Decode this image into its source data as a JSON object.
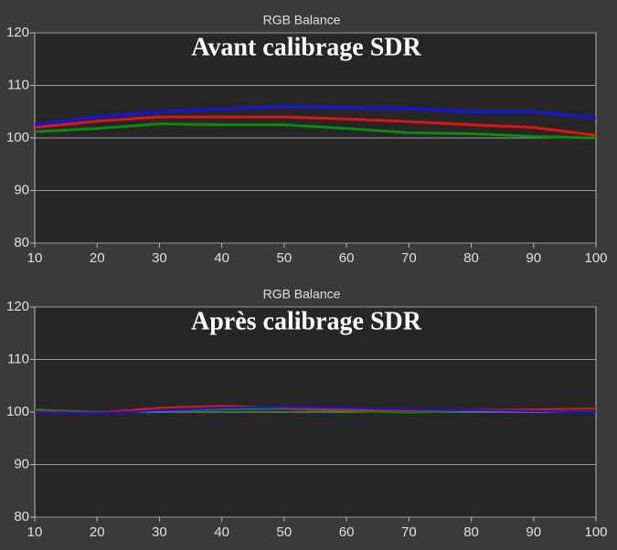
{
  "chart_data": [
    {
      "type": "line",
      "title": "RGB Balance",
      "annotation": "Avant calibrage SDR",
      "x": [
        10,
        20,
        30,
        40,
        50,
        60,
        70,
        80,
        90,
        100
      ],
      "series": [
        {
          "color": "#0a8a0a",
          "values": [
            101.2,
            101.8,
            102.7,
            102.5,
            102.5,
            101.8,
            101,
            100.8,
            100.3,
            100
          ]
        },
        {
          "color": "#e01414",
          "values": [
            102,
            103.2,
            104,
            104,
            104,
            103.6,
            103.1,
            102.5,
            102,
            100.5
          ]
        },
        {
          "color": "#1414e6",
          "values": [
            102.5,
            104,
            105,
            105.5,
            106,
            105.8,
            105.6,
            105,
            105,
            103.8
          ]
        }
      ],
      "xlim": [
        10,
        100
      ],
      "ylim": [
        80,
        120
      ],
      "xticks": [
        10,
        20,
        30,
        40,
        50,
        60,
        70,
        80,
        90,
        100
      ],
      "yticks": [
        80,
        90,
        100,
        110,
        120
      ],
      "grid": true
    },
    {
      "type": "line",
      "title": "RGB Balance",
      "annotation": "Après calibrage SDR",
      "x": [
        10,
        20,
        30,
        40,
        50,
        60,
        70,
        80,
        90,
        100
      ],
      "series": [
        {
          "color": "#0a8a0a",
          "values": [
            100.5,
            100,
            100.3,
            100.5,
            100.6,
            100.2,
            99.9,
            100.3,
            100.2,
            100.1
          ]
        },
        {
          "color": "#e01414",
          "values": [
            100.2,
            99.9,
            100.8,
            101.2,
            100.8,
            100.5,
            100.3,
            100.4,
            100.5,
            100.7
          ]
        },
        {
          "color": "#1414e6",
          "values": [
            100,
            99.8,
            100.3,
            100.8,
            101,
            100.8,
            100.5,
            100.3,
            100.2,
            100
          ]
        }
      ],
      "xlim": [
        10,
        100
      ],
      "ylim": [
        80,
        120
      ],
      "xticks": [
        10,
        20,
        30,
        40,
        50,
        60,
        70,
        80,
        90,
        100
      ],
      "yticks": [
        80,
        90,
        100,
        110,
        120
      ],
      "grid": true
    }
  ]
}
